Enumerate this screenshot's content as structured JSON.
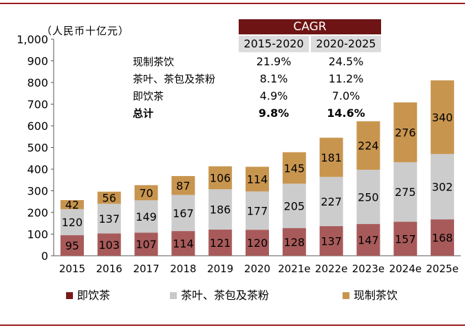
{
  "unit_label": "（人民币十亿元）",
  "cagr": {
    "title": "CAGR",
    "periods": [
      "2015-2020",
      "2020-2025"
    ],
    "rows": [
      {
        "label": "现制茶饮",
        "v1": "21.9%",
        "v2": "24.5%",
        "bold": false
      },
      {
        "label": "茶叶、茶包及茶粉",
        "v1": "8.1%",
        "v2": "11.2%",
        "bold": false
      },
      {
        "label": "即饮茶",
        "v1": "4.9%",
        "v2": "7.0%",
        "bold": false
      },
      {
        "label": "总计",
        "v1": "9.8%",
        "v2": "14.6%",
        "bold": true
      }
    ]
  },
  "legend": [
    {
      "label": "即饮茶",
      "color": "#7a1a1a"
    },
    {
      "label": "茶叶、茶包及茶粉",
      "color": "#c8c8c8"
    },
    {
      "label": "现制茶饮",
      "color": "#c8954f"
    }
  ],
  "chart_data": {
    "type": "bar",
    "stacked": true,
    "categories": [
      "2015",
      "2016",
      "2017",
      "2018",
      "2019",
      "2020",
      "2021e",
      "2022e",
      "2023e",
      "2024e",
      "2025e"
    ],
    "series": [
      {
        "name": "即饮茶",
        "color": "#a85a5a",
        "values": [
          95,
          103,
          107,
          114,
          121,
          120,
          128,
          137,
          147,
          157,
          168
        ]
      },
      {
        "name": "茶叶、茶包及茶粉",
        "color": "#cccccc",
        "values": [
          120,
          137,
          149,
          167,
          186,
          177,
          205,
          227,
          250,
          275,
          302
        ]
      },
      {
        "name": "现制茶饮",
        "color": "#c8954f",
        "values": [
          42,
          56,
          70,
          87,
          106,
          114,
          145,
          181,
          224,
          276,
          340
        ]
      }
    ],
    "ylim": [
      0,
      1000
    ],
    "yticks": [
      0,
      100,
      200,
      300,
      400,
      500,
      600,
      700,
      800,
      900,
      1000
    ],
    "ytick_labels": [
      "0",
      "100",
      "200",
      "300",
      "400",
      "500",
      "600",
      "700",
      "800",
      "900",
      "1,000"
    ],
    "title": "",
    "xlabel": "",
    "ylabel": "人民币十亿元",
    "legend_position": "bottom"
  }
}
